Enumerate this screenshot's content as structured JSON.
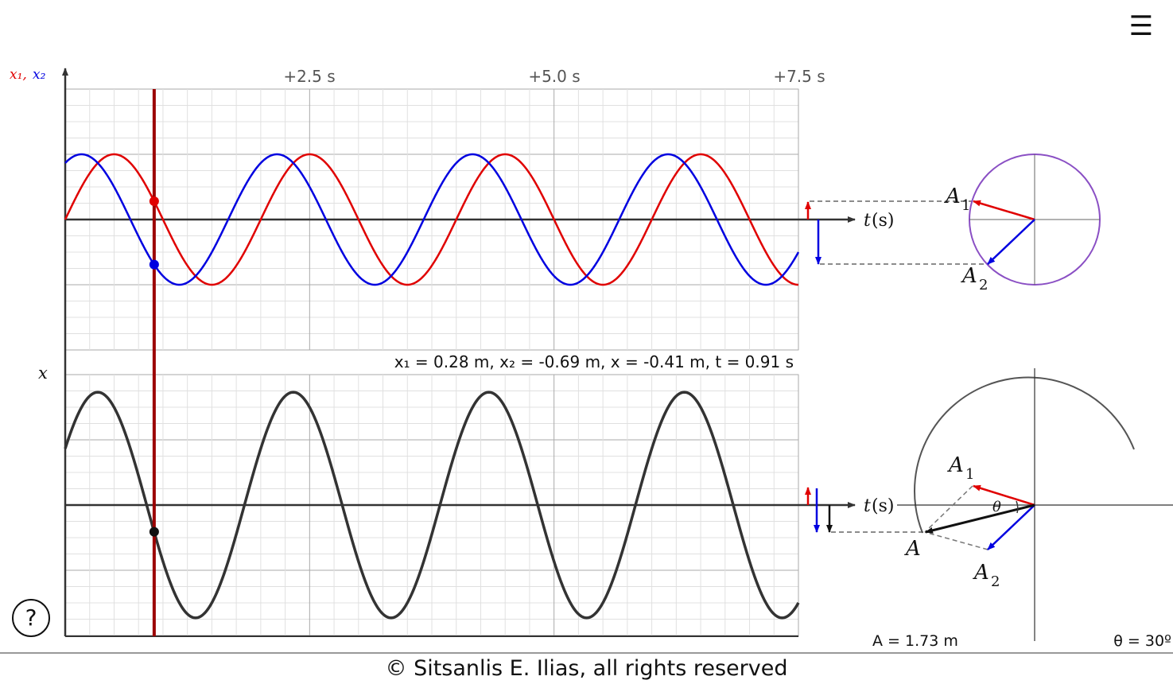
{
  "menu_icon": "☰",
  "help_icon": "?",
  "footer_text": "© Sitsanlis E. Ilias, all rights reserved",
  "top_graph": {
    "ylabel_x1": "x₁,",
    "ylabel_x2": "x₂",
    "time_ticks": [
      "+2.5 s",
      "+5.0 s",
      "+7.5 s"
    ],
    "taxis_t": "t",
    "taxis_unit": "(s)"
  },
  "bottom_graph": {
    "ylabel": "x",
    "taxis_t": "t",
    "taxis_unit": "(s)"
  },
  "readout": "x₁ = 0.28 m, x₂ = -0.69 m, x = -0.41 m, t = 0.91 s",
  "phasor_top": {
    "a1_main": "A",
    "a1_sub": "1",
    "a2_main": "A",
    "a2_sub": "2"
  },
  "phasor_bottom": {
    "a1_main": "A",
    "a1_sub": "1",
    "a2_main": "A",
    "a2_sub": "2",
    "a_label": "A",
    "theta": "θ"
  },
  "amplitude_readout": "A = 1.73 m",
  "theta_readout": "θ = 30º",
  "colors": {
    "x1": "#e00000",
    "x2": "#0000e0",
    "sum": "#333333",
    "cursor": "#9b0000",
    "circle": "#8a4fc4"
  },
  "chart_data": {
    "type": "line",
    "t_cursor": 0.91,
    "t_range": [
      0,
      7.5
    ],
    "x_tick_labels": [
      "+2.5 s",
      "+5.0 s",
      "+7.5 s"
    ],
    "series": [
      {
        "name": "x₁",
        "amplitude": 1.0,
        "period": 2.0,
        "phase_deg": 0
      },
      {
        "name": "x₂",
        "amplitude": 1.0,
        "period": 2.0,
        "phase_deg": 60
      },
      {
        "name": "x",
        "amplitude": 1.73,
        "period": 2.0,
        "phase_deg": 30
      }
    ],
    "values_at_cursor": {
      "x1": 0.28,
      "x2": -0.69,
      "x": -0.41
    }
  }
}
